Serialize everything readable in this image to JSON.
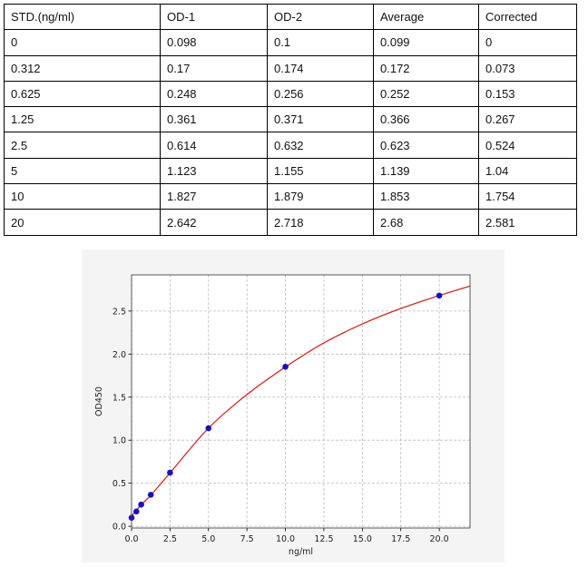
{
  "table": {
    "headers": [
      "STD.(ng/ml)",
      "OD-1",
      "OD-2",
      "Average",
      "Corrected"
    ],
    "rows": [
      [
        "0",
        "0.098",
        "0.1",
        "0.099",
        "0"
      ],
      [
        "0.312",
        "0.17",
        "0.174",
        "0.172",
        "0.073"
      ],
      [
        "0.625",
        "0.248",
        "0.256",
        "0.252",
        "0.153"
      ],
      [
        "1.25",
        "0.361",
        "0.371",
        "0.366",
        "0.267"
      ],
      [
        "2.5",
        "0.614",
        "0.632",
        "0.623",
        "0.524"
      ],
      [
        "5",
        "1.123",
        "1.155",
        "1.139",
        "1.04"
      ],
      [
        "10",
        "1.827",
        "1.879",
        "1.853",
        "1.754"
      ],
      [
        "20",
        "2.642",
        "2.718",
        "2.68",
        "2.581"
      ]
    ]
  },
  "chart_data": {
    "type": "scatter",
    "xlabel": "ng/ml",
    "ylabel": "OD450",
    "xlim": [
      0,
      22
    ],
    "ylim": [
      -0.02,
      2.92
    ],
    "xticks": [
      "0.0",
      "2.5",
      "5.0",
      "7.5",
      "10.0",
      "12.5",
      "15.0",
      "17.5",
      "20.0"
    ],
    "yticks": [
      "0.0",
      "0.5",
      "1.0",
      "1.5",
      "2.0",
      "2.5"
    ],
    "grid": true,
    "points": {
      "x": [
        0,
        0.312,
        0.625,
        1.25,
        2.5,
        5,
        10,
        20
      ],
      "y": [
        0.099,
        0.172,
        0.252,
        0.366,
        0.623,
        1.139,
        1.853,
        2.68
      ],
      "color": "#1a0dc8"
    },
    "fit_curve": {
      "x": [
        0,
        0.625,
        1.25,
        2.5,
        5,
        7.5,
        10,
        12.5,
        15,
        17.5,
        20,
        22
      ],
      "y": [
        0.12,
        0.25,
        0.36,
        0.62,
        1.14,
        1.53,
        1.85,
        2.13,
        2.35,
        2.53,
        2.68,
        2.79
      ],
      "color": "#d62728"
    }
  }
}
